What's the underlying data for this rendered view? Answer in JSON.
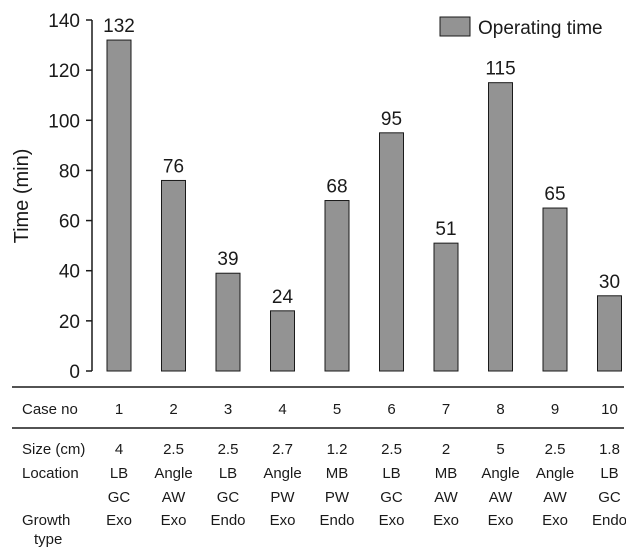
{
  "chart_data": {
    "type": "bar",
    "categories": [
      "1",
      "2",
      "3",
      "4",
      "5",
      "6",
      "7",
      "8",
      "9",
      "10"
    ],
    "series": [
      {
        "name": "Operating time",
        "values": [
          132,
          76,
          39,
          24,
          68,
          95,
          51,
          115,
          65,
          30
        ]
      }
    ],
    "ylabel": "Time (min)",
    "ylim": [
      0,
      140
    ],
    "yticks": [
      0,
      20,
      40,
      60,
      80,
      100,
      120,
      140
    ],
    "grid": false,
    "legend": "top-right",
    "colors": {
      "bar": "#939393",
      "bar_edge": "#1a1a1a"
    },
    "table": {
      "header": {
        "label": "Case no",
        "values": [
          "1",
          "2",
          "3",
          "4",
          "5",
          "6",
          "7",
          "8",
          "9",
          "10"
        ]
      },
      "rows": [
        {
          "label": "Size (cm)",
          "values": [
            "4",
            "2.5",
            "2.5",
            "2.7",
            "1.2",
            "2.5",
            "2",
            "5",
            "2.5",
            "1.8"
          ]
        },
        {
          "label": "Location",
          "values": [
            "LB",
            "Angle",
            "LB",
            "Angle",
            "MB",
            "LB",
            "MB",
            "Angle",
            "Angle",
            "LB"
          ]
        },
        {
          "label": "",
          "values": [
            "GC",
            "AW",
            "GC",
            "PW",
            "PW",
            "GC",
            "AW",
            "AW",
            "AW",
            "GC"
          ]
        },
        {
          "label": "Growth",
          "label2": "type",
          "values": [
            "Exo",
            "Exo",
            "Endo",
            "Exo",
            "Endo",
            "Exo",
            "Exo",
            "Exo",
            "Exo",
            "Endo"
          ]
        }
      ]
    }
  }
}
